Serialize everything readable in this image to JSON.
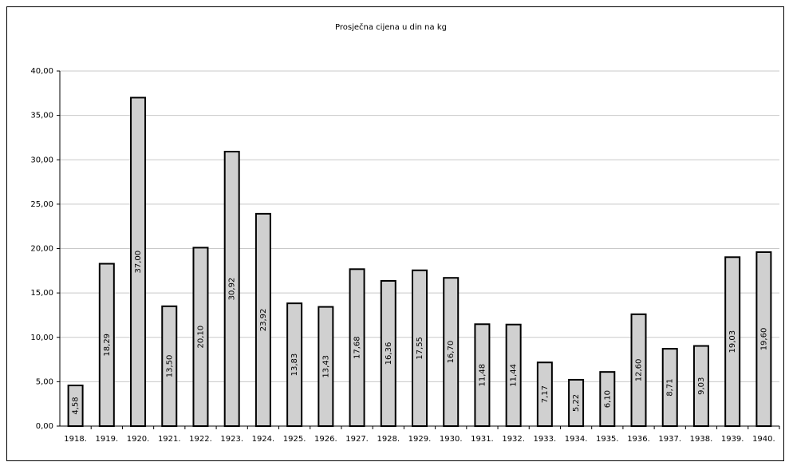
{
  "chart_data": {
    "type": "bar",
    "title": "Prosječna cijena u din na kg",
    "categories": [
      "1918.",
      "1919.",
      "1920.",
      "1921.",
      "1922.",
      "1923.",
      "1924.",
      "1925.",
      "1926.",
      "1927.",
      "1928.",
      "1929.",
      "1930.",
      "1931.",
      "1932.",
      "1933.",
      "1934.",
      "1935.",
      "1936.",
      "1937.",
      "1938.",
      "1939.",
      "1940."
    ],
    "values": [
      4.58,
      18.29,
      37.0,
      13.5,
      20.1,
      30.92,
      23.92,
      13.83,
      13.43,
      17.68,
      16.36,
      17.55,
      16.7,
      11.48,
      11.44,
      7.17,
      5.22,
      6.1,
      12.6,
      8.71,
      9.03,
      19.03,
      19.6
    ],
    "value_labels": [
      "4,58",
      "18,29",
      "37,00",
      "13,50",
      "20,10",
      "30,92",
      "23,92",
      "13,83",
      "13,43",
      "17,68",
      "16,36",
      "17,55",
      "16,70",
      "11,48",
      "11,44",
      "7,17",
      "5,22",
      "6,10",
      "12,60",
      "8,71",
      "9,03",
      "19,03",
      "19,60"
    ],
    "color": "#d0d0d0",
    "ylim": [
      0,
      40
    ],
    "yticks": [
      {
        "value": 0,
        "label": "0,00"
      },
      {
        "value": 5,
        "label": "5,00"
      },
      {
        "value": 10,
        "label": "10,00"
      },
      {
        "value": 15,
        "label": "15,00"
      },
      {
        "value": 20,
        "label": "20,00"
      },
      {
        "value": 25,
        "label": "25,00"
      },
      {
        "value": 30,
        "label": "30,00"
      },
      {
        "value": 35,
        "label": "35,00"
      },
      {
        "value": 40,
        "label": "40,00"
      }
    ],
    "grid": true
  }
}
